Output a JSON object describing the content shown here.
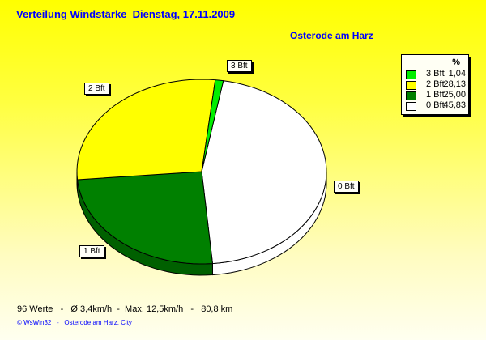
{
  "chart_data": {
    "type": "pie",
    "title": "Verteilung Windstärke  Dienstag, 17.11.2009",
    "subtitle": "Osterode am Harz",
    "legend_header": "%",
    "legend_position": "top-right",
    "slices": [
      {
        "label": "3 Bft",
        "value": 1.04,
        "color": "#00ee00",
        "side": "#00a000"
      },
      {
        "label": "2 Bft",
        "value": 28.13,
        "color": "#ffff00",
        "side": "#c8c800"
      },
      {
        "label": "1 Bft",
        "value": 25.0,
        "color": "#008000",
        "side": "#006000"
      },
      {
        "label": "0 Bft",
        "value": 45.83,
        "color": "#ffffff",
        "side": "#ffffff"
      }
    ],
    "legend_values": [
      "1,04",
      "28,13",
      "25,00",
      "45,83"
    ]
  },
  "footer": {
    "stats": "96 Werte   -   Ø 3,4km/h  -  Max. 12,5km/h   -   80,8 km",
    "credit": "© WsWin32   -   Osterode am Harz, City"
  }
}
